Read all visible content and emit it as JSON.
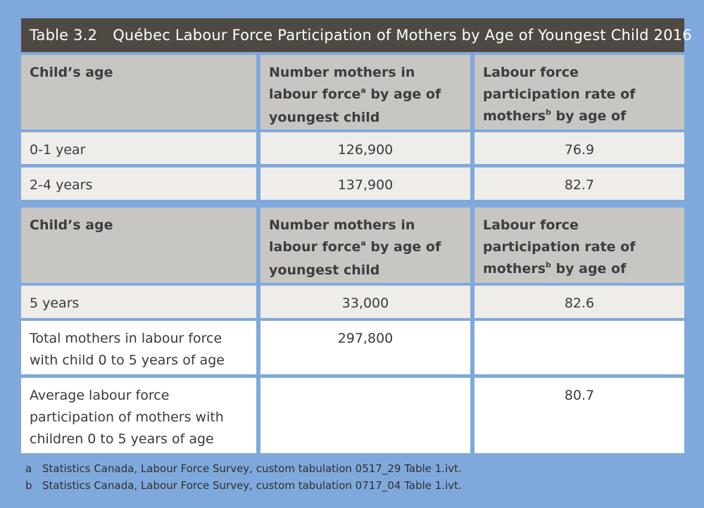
{
  "title": {
    "number": "Table 3.2",
    "text": "Québec Labour Force Participation of Mothers by Age of Youngest Child 2016"
  },
  "headers": {
    "col1": "Child’s age",
    "col2_pre": "Number mothers in labour force",
    "col2_sup": "a",
    "col2_post": " by age of youngest child",
    "col3_pre": "Labour force participation rate of mothers",
    "col3_sup": "b",
    "col3_post": " by age of youngest child"
  },
  "rows": [
    {
      "age": "0-1 year",
      "number": "126,900",
      "rate": "76.9"
    },
    {
      "age": "2-4 years",
      "number": "137,900",
      "rate": "82.7"
    },
    {
      "age": "5 years",
      "number": "33,000",
      "rate": "82.6"
    },
    {
      "age": "Total mothers in labour force with child 0 to 5 years of age",
      "number": "297,800",
      "rate": ""
    },
    {
      "age": "Average labour force participation of mothers with children 0 to 5 years of age",
      "number": "",
      "rate": "80.7"
    }
  ],
  "footnotes": [
    {
      "mark": "a",
      "text": "Statistics Canada, Labour Force Survey, custom tabulation 0517_29 Table 1.ivt."
    },
    {
      "mark": "b",
      "text": "Statistics Canada, Labour Force Survey, custom tabulation 0717_04 Table 1.ivt."
    }
  ]
}
